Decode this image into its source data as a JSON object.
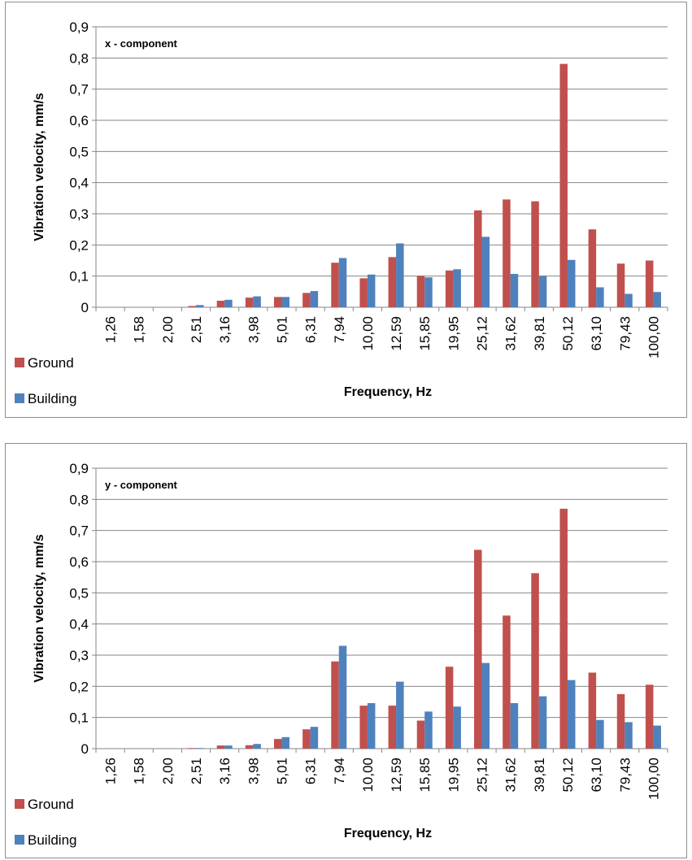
{
  "chart_data": [
    {
      "type": "bar",
      "annotation": "x - component",
      "xlabel": "Frequency, Hz",
      "ylabel": "Vibration velocity, mm/s",
      "ylim": [
        0,
        0.9
      ],
      "yticks": [
        "0",
        "0,1",
        "0,2",
        "0,3",
        "0,4",
        "0,5",
        "0,6",
        "0,7",
        "0,8",
        "0,9"
      ],
      "grid": true,
      "legend_position": "bottom-left",
      "categories": [
        "1,26",
        "1,58",
        "2,00",
        "2,51",
        "3,16",
        "3,98",
        "5,01",
        "6,31",
        "7,94",
        "10,00",
        "12,59",
        "15,85",
        "19,95",
        "25,12",
        "31,62",
        "39,81",
        "50,12",
        "63,10",
        "79,43",
        "100,00"
      ],
      "series": [
        {
          "name": "Ground",
          "color": "#c0504d",
          "values": [
            0,
            0,
            0,
            0.004,
            0.021,
            0.031,
            0.033,
            0.046,
            0.143,
            0.093,
            0.161,
            0.101,
            0.118,
            0.311,
            0.346,
            0.34,
            0.781,
            0.25,
            0.14,
            0.15
          ]
        },
        {
          "name": "Building",
          "color": "#4f81bd",
          "values": [
            0,
            0,
            0,
            0.007,
            0.024,
            0.035,
            0.033,
            0.052,
            0.158,
            0.105,
            0.205,
            0.096,
            0.122,
            0.226,
            0.107,
            0.101,
            0.152,
            0.064,
            0.043,
            0.049
          ]
        }
      ]
    },
    {
      "type": "bar",
      "annotation": "y - component",
      "xlabel": "Frequency, Hz",
      "ylabel": "Vibration velocity, mm/s",
      "ylim": [
        0,
        0.9
      ],
      "yticks": [
        "0",
        "0,1",
        "0,2",
        "0,3",
        "0,4",
        "0,5",
        "0,6",
        "0,7",
        "0,8",
        "0,9"
      ],
      "grid": true,
      "legend_position": "bottom-left",
      "categories": [
        "1,26",
        "1,58",
        "2,00",
        "2,51",
        "3,16",
        "3,98",
        "5,01",
        "6,31",
        "7,94",
        "10,00",
        "12,59",
        "15,85",
        "19,95",
        "25,12",
        "31,62",
        "39,81",
        "50,12",
        "63,10",
        "79,43",
        "100,00"
      ],
      "series": [
        {
          "name": "Ground",
          "color": "#c0504d",
          "values": [
            0,
            0,
            0,
            0.002,
            0.01,
            0.011,
            0.031,
            0.062,
            0.28,
            0.138,
            0.138,
            0.09,
            0.263,
            0.638,
            0.427,
            0.563,
            0.77,
            0.244,
            0.175,
            0.205
          ]
        },
        {
          "name": "Building",
          "color": "#4f81bd",
          "values": [
            0,
            0,
            0,
            0.002,
            0.01,
            0.015,
            0.037,
            0.07,
            0.33,
            0.146,
            0.215,
            0.119,
            0.135,
            0.275,
            0.146,
            0.168,
            0.22,
            0.092,
            0.085,
            0.074
          ]
        }
      ]
    }
  ]
}
